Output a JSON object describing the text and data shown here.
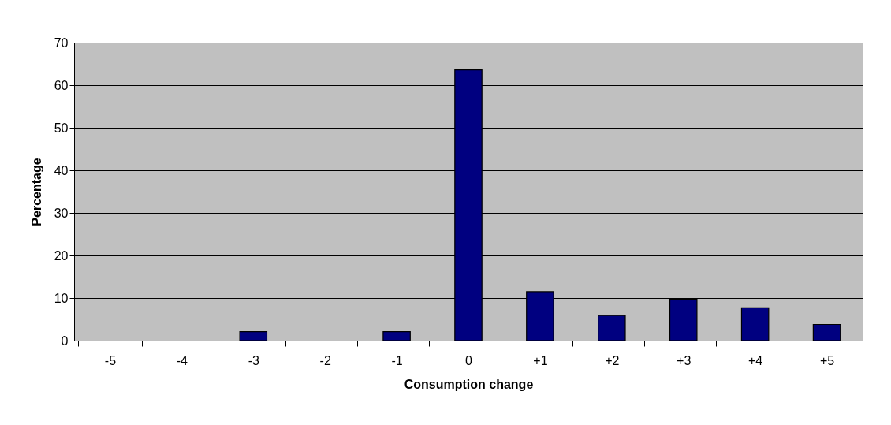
{
  "chart_data": {
    "type": "bar",
    "xlabel": "Consumption change",
    "ylabel": "Percentage",
    "categories": [
      "-5",
      "-4",
      "-3",
      "-2",
      "-1",
      "0",
      "+1",
      "+2",
      "+3",
      "+4",
      "+5"
    ],
    "values": [
      0,
      0,
      2.1,
      0,
      2.1,
      63.6,
      11.5,
      5.9,
      9.7,
      7.7,
      3.8
    ],
    "color": "#000080",
    "ylim": [
      0,
      70
    ],
    "yticks": [
      0,
      10,
      20,
      30,
      40,
      50,
      60,
      70
    ],
    "grid": "y"
  }
}
